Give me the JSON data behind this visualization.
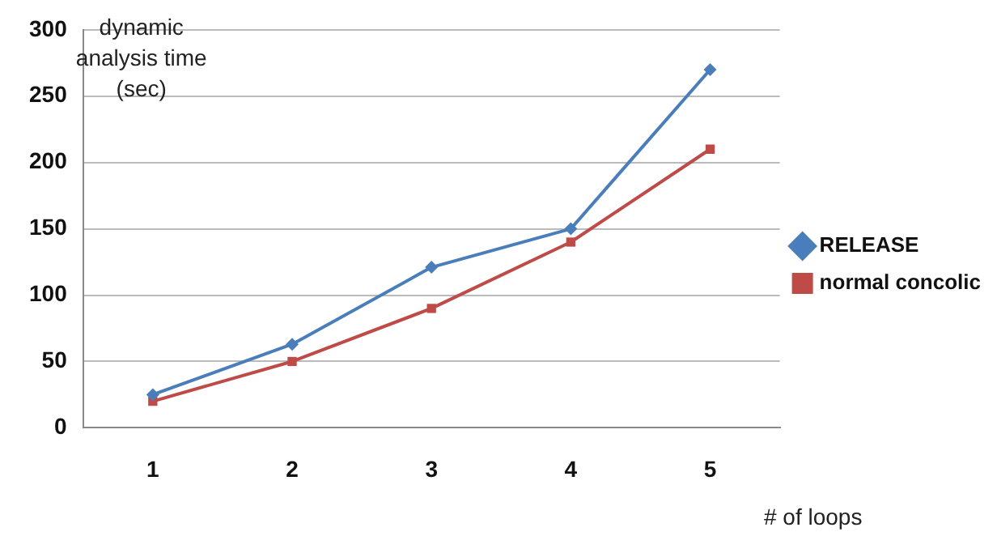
{
  "chart_data": {
    "type": "line",
    "ylabel": "dynamic analysis time (sec)",
    "xlabel": "# of loops",
    "categories": [
      "1",
      "2",
      "3",
      "4",
      "5"
    ],
    "series": [
      {
        "name": "RELEASE",
        "color": "#4a7ebb",
        "marker": "diamond",
        "values": [
          25,
          63,
          121,
          150,
          270
        ]
      },
      {
        "name": "normal concolic",
        "color": "#be4b48",
        "marker": "square",
        "values": [
          20,
          50,
          90,
          140,
          210
        ]
      }
    ],
    "ylim": [
      0,
      300
    ],
    "yticks": [
      0,
      50,
      100,
      150,
      200,
      250,
      300
    ],
    "grid": "y",
    "legend": "right",
    "line_style": "solid"
  }
}
